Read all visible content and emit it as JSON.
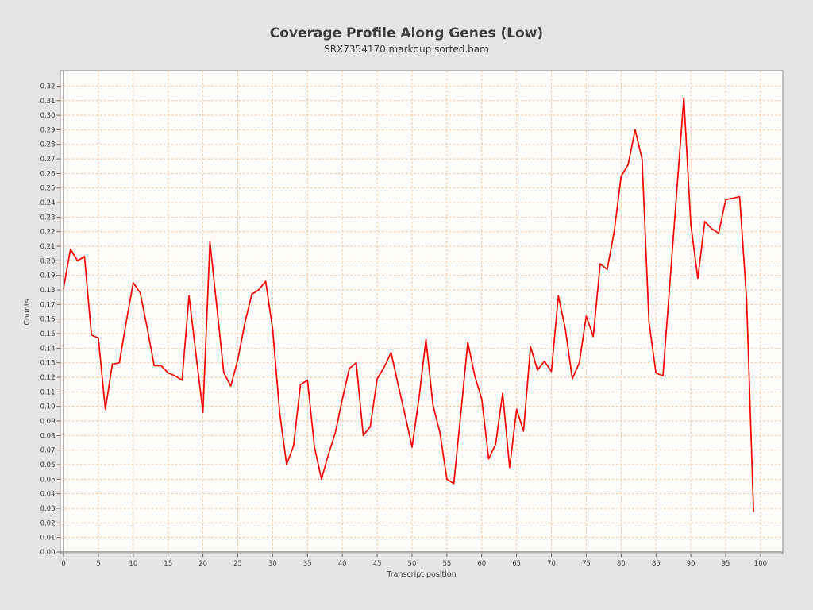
{
  "figure": {
    "title": "Coverage Profile Along Genes (Low)",
    "subtitle": "SRX7354170.markdup.sorted.bam"
  },
  "chart_data": {
    "type": "line",
    "title": "Coverage Profile Along Genes (Low)",
    "subtitle": "SRX7354170.markdup.sorted.bam",
    "xlabel": "Transcript position",
    "ylabel": "Counts",
    "legend": "none",
    "grid": true,
    "xlim": [
      -0.46,
      103.2
    ],
    "ylim": [
      -0.0011,
      0.3306
    ],
    "x_ticks": [
      0,
      5,
      10,
      15,
      20,
      25,
      30,
      35,
      40,
      45,
      50,
      55,
      60,
      65,
      70,
      75,
      80,
      85,
      90,
      95,
      100
    ],
    "y_ticks": [
      0.0,
      0.01,
      0.02,
      0.03,
      0.04,
      0.05,
      0.06,
      0.07,
      0.08,
      0.09,
      0.1,
      0.11,
      0.12,
      0.13,
      0.14,
      0.15,
      0.16,
      0.17,
      0.18,
      0.19,
      0.2,
      0.21,
      0.22,
      0.23,
      0.24,
      0.25,
      0.26,
      0.27,
      0.28,
      0.29,
      0.3,
      0.31,
      0.32
    ],
    "x": [
      0,
      1,
      2,
      3,
      4,
      5,
      6,
      7,
      8,
      9,
      10,
      11,
      12,
      13,
      14,
      15,
      16,
      17,
      18,
      19,
      20,
      21,
      22,
      23,
      24,
      25,
      26,
      27,
      28,
      29,
      30,
      31,
      32,
      33,
      34,
      35,
      36,
      37,
      38,
      39,
      40,
      41,
      42,
      43,
      44,
      45,
      46,
      47,
      48,
      49,
      50,
      51,
      52,
      53,
      54,
      55,
      56,
      57,
      58,
      59,
      60,
      61,
      62,
      63,
      64,
      65,
      66,
      67,
      68,
      69,
      70,
      71,
      72,
      73,
      74,
      75,
      76,
      77,
      78,
      79,
      80,
      81,
      82,
      83,
      84,
      85,
      86,
      87,
      88,
      89,
      90,
      91,
      92,
      93,
      94,
      95,
      96,
      97,
      98,
      99
    ],
    "values": [
      0.181,
      0.208,
      0.2,
      0.203,
      0.149,
      0.147,
      0.098,
      0.129,
      0.13,
      0.158,
      0.185,
      0.178,
      0.154,
      0.128,
      0.128,
      0.123,
      0.121,
      0.118,
      0.176,
      0.136,
      0.096,
      0.213,
      0.168,
      0.123,
      0.114,
      0.132,
      0.157,
      0.177,
      0.18,
      0.186,
      0.153,
      0.096,
      0.06,
      0.073,
      0.115,
      0.118,
      0.072,
      0.05,
      0.067,
      0.082,
      0.105,
      0.126,
      0.13,
      0.08,
      0.086,
      0.119,
      0.127,
      0.137,
      0.115,
      0.094,
      0.072,
      0.106,
      0.146,
      0.101,
      0.082,
      0.05,
      0.047,
      0.095,
      0.144,
      0.121,
      0.105,
      0.064,
      0.074,
      0.109,
      0.058,
      0.098,
      0.083,
      0.141,
      0.125,
      0.131,
      0.124,
      0.176,
      0.153,
      0.119,
      0.13,
      0.162,
      0.148,
      0.198,
      0.194,
      0.22,
      0.258,
      0.266,
      0.29,
      0.27,
      0.158,
      0.123,
      0.121,
      0.185,
      0.249,
      0.312,
      0.225,
      0.188,
      0.227,
      0.222,
      0.219,
      0.242,
      0.243,
      0.244,
      0.173,
      0.028
    ],
    "colors": {
      "line": "#fe0000",
      "grid": "#f6c5a0",
      "figure_background": "#e5e5e5",
      "plot_background": "#fffdfb",
      "frame": "#8c8c8c",
      "axis": "#666666",
      "tick_text": "#3d3d3d"
    }
  }
}
